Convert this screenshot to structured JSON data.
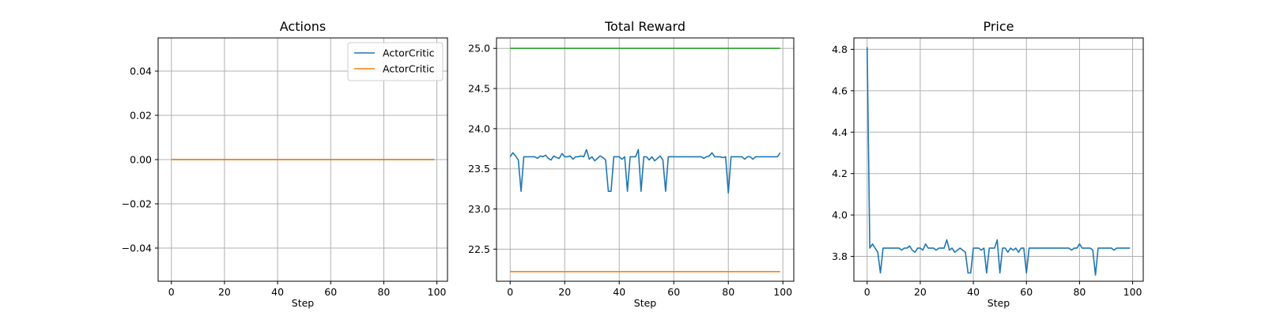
{
  "chart_data": [
    {
      "type": "line",
      "title": "Actions",
      "xlabel": "Step",
      "ylabel": "",
      "xlim": [
        -5,
        104
      ],
      "ylim": [
        -0.055,
        0.055
      ],
      "xticks": [
        0,
        20,
        40,
        60,
        80,
        100
      ],
      "yticks": [
        -0.04,
        -0.02,
        0.0,
        0.02,
        0.04
      ],
      "ytick_labels": [
        "−0.04",
        "−0.02",
        "0.00",
        "0.02",
        "0.04"
      ],
      "grid": true,
      "legend": {
        "placement": "upper right",
        "entries": [
          "ActorCritic",
          "ActorCritic"
        ]
      },
      "series": [
        {
          "name": "ActorCritic",
          "color": "#1f77b4",
          "x_start": 0,
          "values": [
            0,
            0,
            0,
            0,
            0,
            0,
            0,
            0,
            0,
            0,
            0,
            0,
            0,
            0,
            0,
            0,
            0,
            0,
            0,
            0,
            0,
            0,
            0,
            0,
            0,
            0,
            0,
            0,
            0,
            0,
            0,
            0,
            0,
            0,
            0,
            0,
            0,
            0,
            0,
            0,
            0,
            0,
            0,
            0,
            0,
            0,
            0,
            0,
            0,
            0,
            0,
            0,
            0,
            0,
            0,
            0,
            0,
            0,
            0,
            0,
            0,
            0,
            0,
            0,
            0,
            0,
            0,
            0,
            0,
            0,
            0,
            0,
            0,
            0,
            0,
            0,
            0,
            0,
            0,
            0,
            0,
            0,
            0,
            0,
            0,
            0,
            0,
            0,
            0,
            0,
            0,
            0,
            0,
            0,
            0,
            0,
            0,
            0,
            0,
            0
          ]
        },
        {
          "name": "ActorCritic",
          "color": "#ff7f0e",
          "x_start": 0,
          "values": [
            0,
            0,
            0,
            0,
            0,
            0,
            0,
            0,
            0,
            0,
            0,
            0,
            0,
            0,
            0,
            0,
            0,
            0,
            0,
            0,
            0,
            0,
            0,
            0,
            0,
            0,
            0,
            0,
            0,
            0,
            0,
            0,
            0,
            0,
            0,
            0,
            0,
            0,
            0,
            0,
            0,
            0,
            0,
            0,
            0,
            0,
            0,
            0,
            0,
            0,
            0,
            0,
            0,
            0,
            0,
            0,
            0,
            0,
            0,
            0,
            0,
            0,
            0,
            0,
            0,
            0,
            0,
            0,
            0,
            0,
            0,
            0,
            0,
            0,
            0,
            0,
            0,
            0,
            0,
            0,
            0,
            0,
            0,
            0,
            0,
            0,
            0,
            0,
            0,
            0,
            0,
            0,
            0,
            0,
            0,
            0,
            0,
            0,
            0,
            0
          ]
        }
      ]
    },
    {
      "type": "line",
      "title": "Total Reward",
      "xlabel": "Step",
      "ylabel": "",
      "xlim": [
        -5,
        104
      ],
      "ylim": [
        22.1,
        25.13
      ],
      "xticks": [
        0,
        20,
        40,
        60,
        80,
        100
      ],
      "yticks": [
        22.5,
        23.0,
        23.5,
        24.0,
        24.5,
        25.0
      ],
      "ytick_labels": [
        "22.5",
        "23.0",
        "23.5",
        "24.0",
        "24.5",
        "25.0"
      ],
      "grid": true,
      "series": [
        {
          "color": "#1f77b4",
          "x_start": 0,
          "values": [
            23.65,
            23.7,
            23.66,
            23.61,
            23.22,
            23.65,
            23.65,
            23.65,
            23.65,
            23.65,
            23.63,
            23.66,
            23.65,
            23.67,
            23.63,
            23.61,
            23.66,
            23.64,
            23.63,
            23.69,
            23.65,
            23.65,
            23.66,
            23.62,
            23.65,
            23.65,
            23.66,
            23.65,
            23.74,
            23.62,
            23.65,
            23.6,
            23.63,
            23.66,
            23.64,
            23.61,
            23.22,
            23.22,
            23.65,
            23.65,
            23.65,
            23.62,
            23.65,
            23.22,
            23.65,
            23.65,
            23.65,
            23.74,
            23.22,
            23.65,
            23.65,
            23.61,
            23.65,
            23.6,
            23.63,
            23.66,
            23.61,
            23.22,
            23.65,
            23.65,
            23.65,
            23.65,
            23.65,
            23.65,
            23.65,
            23.65,
            23.65,
            23.65,
            23.65,
            23.65,
            23.65,
            23.63,
            23.65,
            23.66,
            23.7,
            23.65,
            23.65,
            23.65,
            23.64,
            23.65,
            23.2,
            23.65,
            23.65,
            23.65,
            23.65,
            23.65,
            23.62,
            23.65,
            23.65,
            23.62,
            23.65,
            23.65,
            23.65,
            23.65,
            23.65,
            23.65,
            23.65,
            23.65,
            23.65,
            23.7
          ]
        },
        {
          "color": "#ff7f0e",
          "x": [
            0,
            99
          ],
          "values": [
            22.22,
            22.22
          ]
        },
        {
          "color": "#2ca02c",
          "x": [
            0,
            99
          ],
          "values": [
            25.0,
            25.0
          ]
        }
      ]
    },
    {
      "type": "line",
      "title": "Price",
      "xlabel": "Step",
      "ylabel": "",
      "xlim": [
        -5,
        104
      ],
      "ylim": [
        3.68,
        4.855
      ],
      "xticks": [
        0,
        20,
        40,
        60,
        80,
        100
      ],
      "yticks": [
        3.8,
        4.0,
        4.2,
        4.4,
        4.6,
        4.8
      ],
      "ytick_labels": [
        "3.8",
        "4.0",
        "4.2",
        "4.4",
        "4.6",
        "4.8"
      ],
      "grid": true,
      "series": [
        {
          "color": "#1f77b4",
          "x_start": 0,
          "values": [
            4.81,
            3.84,
            3.86,
            3.84,
            3.82,
            3.72,
            3.84,
            3.84,
            3.84,
            3.84,
            3.84,
            3.84,
            3.84,
            3.83,
            3.84,
            3.84,
            3.85,
            3.83,
            3.82,
            3.84,
            3.84,
            3.83,
            3.86,
            3.84,
            3.84,
            3.84,
            3.83,
            3.84,
            3.84,
            3.84,
            3.88,
            3.83,
            3.84,
            3.82,
            3.83,
            3.84,
            3.83,
            3.82,
            3.72,
            3.72,
            3.84,
            3.84,
            3.84,
            3.83,
            3.84,
            3.72,
            3.84,
            3.84,
            3.84,
            3.88,
            3.72,
            3.84,
            3.84,
            3.82,
            3.84,
            3.83,
            3.84,
            3.82,
            3.84,
            3.84,
            3.72,
            3.84,
            3.84,
            3.84,
            3.84,
            3.84,
            3.84,
            3.84,
            3.84,
            3.84,
            3.84,
            3.84,
            3.84,
            3.84,
            3.84,
            3.84,
            3.84,
            3.83,
            3.84,
            3.84,
            3.86,
            3.84,
            3.84,
            3.84,
            3.84,
            3.83,
            3.71,
            3.84,
            3.84,
            3.84,
            3.84,
            3.84,
            3.84,
            3.83,
            3.84,
            3.84,
            3.84,
            3.84,
            3.84,
            3.84
          ]
        }
      ]
    }
  ]
}
